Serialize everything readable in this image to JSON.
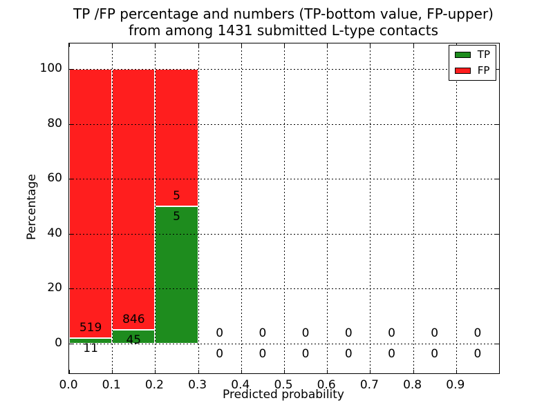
{
  "title": {
    "line1": "TP /FP percentage and numbers (TP-bottom value, FP-upper)",
    "line2": "from among 1431 submitted L-type contacts"
  },
  "axes": {
    "xlabel": "Predicted probability",
    "ylabel": "Percentage"
  },
  "legend": {
    "items": [
      {
        "label": "TP",
        "color": "#1e8c1e"
      },
      {
        "label": "FP",
        "color": "#ff1e1e"
      }
    ]
  },
  "chart_data": {
    "type": "bar",
    "stacked": true,
    "normalized_to_percent": true,
    "title": "TP /FP percentage and numbers (TP-bottom value, FP-upper) from among 1431 submitted L-type contacts",
    "xlabel": "Predicted probability",
    "ylabel": "Percentage",
    "grid": true,
    "legend_position": "upper right",
    "bin_width": 0.1,
    "bin_starts": [
      0.0,
      0.1,
      0.2,
      0.3,
      0.4,
      0.5,
      0.6,
      0.7,
      0.8,
      0.9
    ],
    "x_ticks": [
      0.0,
      0.1,
      0.2,
      0.3,
      0.4,
      0.5,
      0.6,
      0.7,
      0.8,
      0.9
    ],
    "x_tick_labels": [
      "0.0",
      "0.1",
      "0.2",
      "0.3",
      "0.4",
      "0.5",
      "0.6",
      "0.7",
      "0.8",
      "0.9"
    ],
    "y_ticks": [
      0,
      20,
      40,
      60,
      80,
      100
    ],
    "xlim": [
      0.0,
      1.0
    ],
    "ylim": [
      -10.8,
      109.3
    ],
    "series": [
      {
        "name": "TP",
        "color": "#1e8c1e",
        "counts": [
          11,
          45,
          5,
          0,
          0,
          0,
          0,
          0,
          0,
          0
        ]
      },
      {
        "name": "FP",
        "color": "#ff1e1e",
        "counts": [
          519,
          846,
          5,
          0,
          0,
          0,
          0,
          0,
          0,
          0
        ]
      }
    ],
    "tp_percent_by_bin": [
      2.08,
      5.05,
      50.0,
      0,
      0,
      0,
      0,
      0,
      0,
      0
    ],
    "fp_percent_by_bin": [
      97.92,
      94.95,
      50.0,
      0,
      0,
      0,
      0,
      0,
      0,
      0
    ]
  }
}
